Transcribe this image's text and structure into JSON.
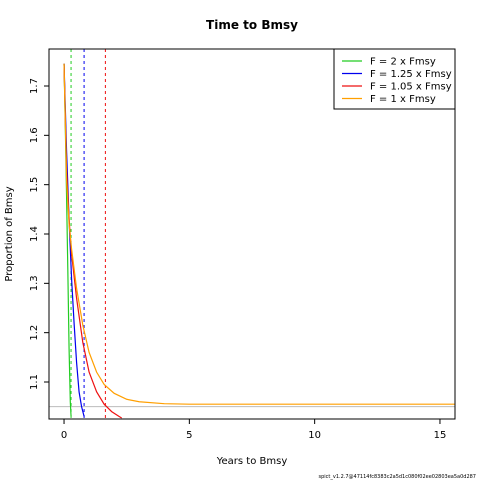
{
  "chart_data": {
    "type": "line",
    "title": "Time to Bmsy",
    "xlabel": "Years to Bmsy",
    "ylabel": "Proportion of Bmsy",
    "xlim": [
      -0.6,
      15.6
    ],
    "ylim": [
      1.025,
      1.775
    ],
    "x_ticks": [
      0,
      5,
      10,
      15
    ],
    "y_ticks": [
      1.1,
      1.2,
      1.3,
      1.4,
      1.5,
      1.6,
      1.7
    ],
    "grid": false,
    "legend_position": "top-right",
    "hline": {
      "y": 1.05,
      "color": "#bbbbbb"
    },
    "footnote": "spict_v1.2.7@47114fc8383c2a5d1c080f02ee02803ea5a0d287",
    "series": [
      {
        "name": "F = 2 x Fmsy",
        "color": "#22cc22",
        "points": [
          [
            0,
            1.745
          ],
          [
            0.05,
            1.62
          ],
          [
            0.1,
            1.48
          ],
          [
            0.15,
            1.33
          ],
          [
            0.2,
            1.17
          ],
          [
            0.25,
            1.06
          ],
          [
            0.28,
            1.03
          ]
        ],
        "vline": 0.28
      },
      {
        "name": "F = 1.25 x Fmsy",
        "color": "#0000ee",
        "points": [
          [
            0,
            1.745
          ],
          [
            0.1,
            1.57
          ],
          [
            0.2,
            1.43
          ],
          [
            0.3,
            1.31
          ],
          [
            0.4,
            1.22
          ],
          [
            0.5,
            1.14
          ],
          [
            0.6,
            1.08
          ],
          [
            0.7,
            1.05
          ],
          [
            0.8,
            1.03
          ]
        ],
        "vline": 0.8
      },
      {
        "name": "F = 1.05 x Fmsy",
        "color": "#ee1111",
        "points": [
          [
            0,
            1.745
          ],
          [
            0.1,
            1.53
          ],
          [
            0.2,
            1.43
          ],
          [
            0.3,
            1.36
          ],
          [
            0.5,
            1.27
          ],
          [
            0.75,
            1.18
          ],
          [
            1.0,
            1.12
          ],
          [
            1.3,
            1.08
          ],
          [
            1.6,
            1.055
          ],
          [
            1.9,
            1.04
          ],
          [
            2.2,
            1.03
          ],
          [
            2.3,
            1.027
          ]
        ],
        "vline": 1.65
      },
      {
        "name": "F = 1 x Fmsy",
        "color": "#ff9f00",
        "points": [
          [
            0,
            1.745
          ],
          [
            0.1,
            1.51
          ],
          [
            0.2,
            1.42
          ],
          [
            0.3,
            1.37
          ],
          [
            0.5,
            1.29
          ],
          [
            0.75,
            1.215
          ],
          [
            1.0,
            1.16
          ],
          [
            1.3,
            1.12
          ],
          [
            1.6,
            1.095
          ],
          [
            2.0,
            1.077
          ],
          [
            2.5,
            1.065
          ],
          [
            3.0,
            1.06
          ],
          [
            4.0,
            1.056
          ],
          [
            5.0,
            1.055
          ],
          [
            8.0,
            1.055
          ],
          [
            12.0,
            1.055
          ],
          [
            15.6,
            1.055
          ]
        ],
        "vline": null
      }
    ]
  }
}
